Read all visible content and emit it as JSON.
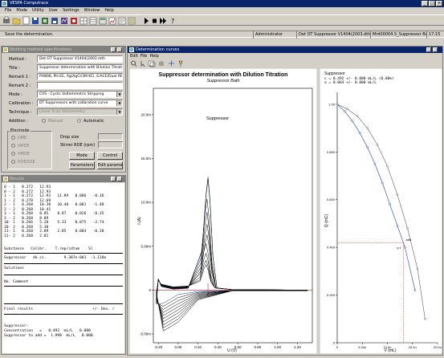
{
  "app": {
    "title": "VESPA Computrace",
    "menu": [
      "File",
      "Mode",
      "Utility",
      "User",
      "Settings",
      "Window",
      "Help"
    ]
  },
  "status_bar": {
    "message": "Save the determination.",
    "user": "Administrator",
    "file": "Det OT Suppressor V1404(2003.dth",
    "method": "Mrd00004.S_Suppressor Bath.dth",
    "time": "17:15"
  },
  "method_panel": {
    "title": "Working method specifications",
    "fields": {
      "method_label": "Method :",
      "method_value": "Det OT Suppressor V1404(2003.mth",
      "title_label": "Title :",
      "title_value": "Suppressor determination with Dilution Titration",
      "remark1_label": "Remark 1 :",
      "remark1_value": "PH808, PH-EE, Ag/AgCl/3M KCl, E/ACE/Dual RE",
      "remark2_label": "Remark 2 :",
      "remark2_value": "",
      "mode_label": "Mode :",
      "mode_value": "CVS - Cyclic Voltammetric Stripping",
      "calibration_label": "Calibration :",
      "calibration_value": "DT Suppressors with calibration curve",
      "technique_label": "Technique :",
      "technique_value": "Linear Scan Voltammetry",
      "addition_label": "Addition :",
      "addition_manual": "Manual",
      "addition_automatic": "Automatic"
    },
    "electrode_group": {
      "title": "Electrode",
      "options": [
        "DME",
        "SMDE",
        "HMDE",
        "RDE/SSE"
      ]
    },
    "drop_size_label": "Drop size",
    "drop_size_value": "",
    "stirrer_label": "Stirrer RDE (rpm)",
    "stirrer_value": "",
    "buttons": {
      "mode": "Mode",
      "control": "Control",
      "parameters": "Parameters",
      "edit_parameters": "Edit parameters"
    }
  },
  "results_panel": {
    "title": "Results",
    "rows": [
      "0 - 1   0.272   12.93",
      "0 - 2   0.272   12.93",
      "1 - 1   0.272   12.93   11.89   0.086   -0.36",
      "1 - 2   0.270   12.69",
      "2 - 1   0.268   10.38   10.40   0.001   -1.48",
      "2 - 2   0.268   10.41",
      "3 - 1   0.268   8.85    8.87    0.026   -0.35",
      "3 - 2   0.268   8.89",
      "10- 1   0.266   5.28    5.33    0.075   -2.74",
      "10- 2   0.268   5.38",
      "11- 1   0.268   2.89    2.85    0.084   -0.38",
      "11- 2   0.268   2.81"
    ],
    "header1": "Substance   Calibr.    T.rep/cdtum    Sl",
    "line_suppressor": "Suppressor   dk.cs.        9.387e-001  -1.118e",
    "label_solutions": "Solutions",
    "header2": "No. Comment",
    "final_label": "Final results",
    "final_header": "+/- Dev. r",
    "final_substance": "Suppressor:",
    "final_rows": [
      "Concentration   =   0.492  mL/L   0.000",
      "Suppressor to add =  1.998  mL/L   0.000"
    ]
  },
  "curves_window": {
    "title": "Determination curves",
    "menu": [
      "Edit",
      "File",
      "Help"
    ],
    "icons": [
      "zoom-icon",
      "cursor-icon",
      "overlay-icon",
      "hand-icon",
      "arrows-icon",
      "pin-icon"
    ]
  },
  "chart_main": {
    "title": "Suppressor determination with Dilution Titration",
    "subtitle": "Suppressor Bath",
    "peak_label": "Suppressor",
    "ylabel": "I (A)",
    "xlabel": "U (V)",
    "yticks": [
      "20.0m",
      "15.0m",
      "10.0m",
      "5.00m",
      "0",
      "-5.00m"
    ],
    "xticks": [
      "-0.20",
      "0.00",
      "0.20",
      "0.40",
      "0.60",
      "0.80",
      "1.00",
      "1.20"
    ]
  },
  "chart_data": [
    {
      "type": "line",
      "title": "Suppressor determination with Dilution Titration",
      "subtitle": "Suppressor Bath",
      "xlabel": "U (V)",
      "ylabel": "I (A)",
      "xlim": [
        -0.25,
        1.35
      ],
      "ylim": [
        -6.0,
        23.0
      ],
      "annotations": [
        "Suppressor"
      ],
      "series": [
        {
          "name": "",
          "peak_x": 0.3,
          "peak_y": 12.9
        },
        {
          "name": "",
          "peak_x": 0.3,
          "peak_y": 12.7
        },
        {
          "name": "",
          "peak_x": 0.29,
          "peak_y": 10.4
        },
        {
          "name": "",
          "peak_x": 0.29,
          "peak_y": 8.9
        },
        {
          "name": "",
          "peak_x": 0.29,
          "peak_y": 7.5
        },
        {
          "name": "",
          "peak_x": 0.29,
          "peak_y": 6.3
        },
        {
          "name": "",
          "peak_x": 0.28,
          "peak_y": 5.3
        },
        {
          "name": "",
          "peak_x": 0.28,
          "peak_y": 4.2
        },
        {
          "name": "",
          "peak_x": 0.28,
          "peak_y": 3.4
        },
        {
          "name": "",
          "peak_x": 0.28,
          "peak_y": 2.9
        }
      ]
    },
    {
      "type": "scatter",
      "title": "Suppressor",
      "xlabel": "V (mL)",
      "ylabel": "Q (mC)",
      "xlim": [
        0,
        20
      ],
      "ylim": [
        0,
        1.05
      ],
      "legend": [
        "c  =   0.492  +/-   0.000 mL/L (0.00%)",
        "a  =   0.064  +/-   0.000 mL/L"
      ],
      "xticks": [
        "0",
        "5.00u",
        "10.0u",
        "15.0u",
        "20.0u"
      ],
      "yticks": [
        "1.00",
        "0.800",
        "0.600",
        "0.400",
        "0.200",
        "0"
      ],
      "marker_labels": [
        "add",
        "p.t."
      ],
      "series": [
        {
          "name": "",
          "x": [
            0.0,
            1.5,
            3.0,
            4.5,
            6.0,
            7.5,
            9.0,
            10.5,
            12.0,
            13.5,
            15.5
          ],
          "y": [
            1.0,
            0.97,
            0.93,
            0.88,
            0.82,
            0.75,
            0.67,
            0.58,
            0.49,
            0.4,
            0.22
          ]
        },
        {
          "name": "",
          "x": [
            0.0,
            2.0,
            4.0,
            6.0,
            8.0,
            10.0,
            12.0,
            14.0,
            16.0,
            17.5
          ],
          "y": [
            1.0,
            0.98,
            0.95,
            0.9,
            0.83,
            0.74,
            0.62,
            0.48,
            0.31,
            0.1
          ]
        }
      ]
    }
  ]
}
